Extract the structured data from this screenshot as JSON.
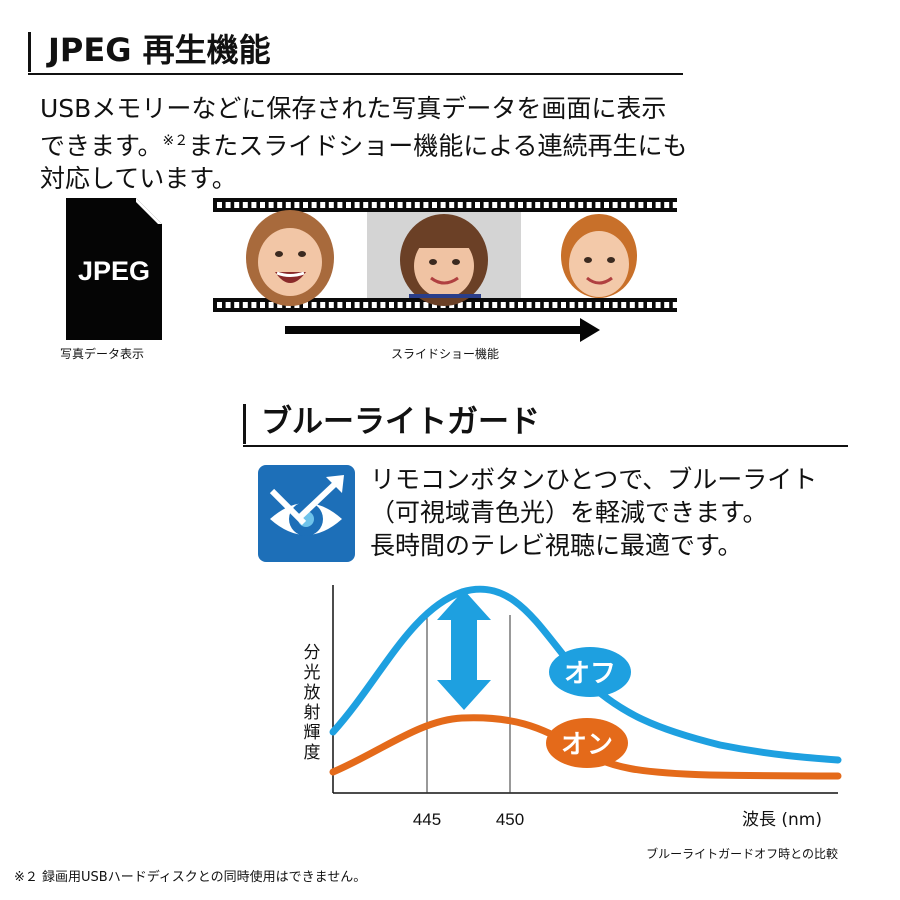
{
  "jpeg_section": {
    "title": "JPEG 再生機能",
    "desc_text": "USBメモリーなどに保存された写真データを画面に表示できます。",
    "desc_note": "※２",
    "desc_text2": "またスライドショー機能による連続再生にも対応しています。",
    "file_icon_label": "JPEG",
    "file_caption": "写真データ表示",
    "slideshow_caption": "スライドショー機能",
    "photos": [
      "laughing-girl-photo",
      "smiling-girl-photo",
      "smiling-boy-photo"
    ]
  },
  "bluelight_section": {
    "title": "ブルーライトガード",
    "desc_lines": [
      "リモコンボタンひとつで、ブルーライト",
      "（可視域青色光）を軽減できます。",
      "長時間のテレビ視聴に最適です。"
    ],
    "icon": "eye-arrow-icon",
    "colors": {
      "off": "#1ea0e0",
      "on": "#e46a1a",
      "icon_bg": "#1d6fb8"
    }
  },
  "chart_data": {
    "type": "line",
    "ylabel": "分光放射輝度",
    "xlabel": "波長 (nm)",
    "x_ticks": [
      "445",
      "450"
    ],
    "series": [
      {
        "name": "オフ"
      },
      {
        "name": "オン"
      }
    ],
    "caption": "ブルーライトガードオフ時との比較"
  },
  "footnote": "※２ 録画用USBハードディスクとの同時使用はできません。"
}
